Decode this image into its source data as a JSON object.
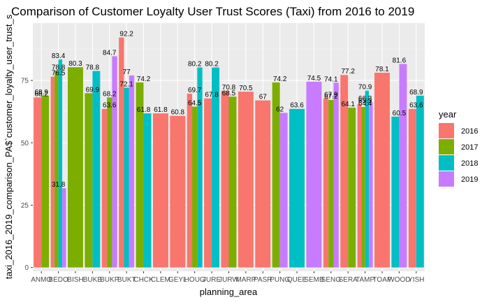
{
  "chart_data": {
    "type": "bar",
    "title": "Comparison of Customer Loyalty User Trust Scores (Taxi) from 2016 to 2019",
    "xlabel": "planning_area",
    "ylabel": "taxi_2016_2019_comparison_PA$`customer_loyalty_user_trust_s",
    "ylim": [
      -1.5,
      98
    ],
    "yticks": [
      0,
      25,
      50,
      75
    ],
    "grid": true,
    "legend_position": "right",
    "legend_title": "year",
    "colors": {
      "2016": "#F8766D",
      "2017": "#7CAE00",
      "2018": "#00BFC4",
      "2019": "#C77CFF"
    },
    "categories": [
      "ANMO",
      "BEDO",
      "BISH",
      "BUKB",
      "BUKP",
      "BUKT",
      "CHCK",
      "CLEM",
      "GEYL",
      "HOUG",
      "JURE",
      "JURW",
      "MARP",
      "PASR",
      "PUNG",
      "QUEE",
      "SEMB",
      "SENG",
      "SERA",
      "TAMP",
      "TOAP",
      "WOOD",
      "YISH"
    ],
    "tick_labels": [
      "ANMO",
      "BEDO",
      "BISH",
      "BUKB",
      "BUKP",
      "BUKT",
      "CHCK",
      "CLEM",
      "GEYL",
      "HOUG",
      "JURE",
      "JURW",
      "MARP",
      "PASR",
      "PUNG",
      "QUEE",
      "SEMB",
      "SENG",
      "SERA",
      "TAMP",
      "TOAP",
      "WOOD",
      "YISH"
    ],
    "series": [
      {
        "name": "2016",
        "values": [
          68.2,
          76.5,
          null,
          null,
          63.6,
          92.2,
          null,
          61.8,
          60.8,
          69.7,
          67.8,
          70.8,
          70.5,
          67,
          null,
          null,
          null,
          67.9,
          77.2,
          65.5,
          78.1,
          null,
          63.6
        ]
      },
      {
        "name": "2017",
        "values": [
          68.9,
          78.8,
          80.3,
          69.9,
          68.2,
          null,
          74.2,
          null,
          null,
          64.5,
          null,
          68.5,
          null,
          null,
          74.2,
          null,
          null,
          67.2,
          64.1,
          64.4,
          null,
          null,
          null
        ]
      },
      {
        "name": "2018",
        "values": [
          null,
          83.4,
          null,
          78.8,
          null,
          72.1,
          61.8,
          null,
          null,
          80.2,
          80.2,
          null,
          null,
          null,
          null,
          63.6,
          null,
          null,
          null,
          70.9,
          null,
          60.5,
          68.9
        ]
      },
      {
        "name": "2019",
        "values": [
          null,
          31.8,
          null,
          null,
          84.7,
          77,
          null,
          null,
          null,
          null,
          null,
          null,
          null,
          null,
          62,
          null,
          74.5,
          74.1,
          null,
          66.3,
          null,
          81.6,
          null
        ]
      }
    ]
  }
}
